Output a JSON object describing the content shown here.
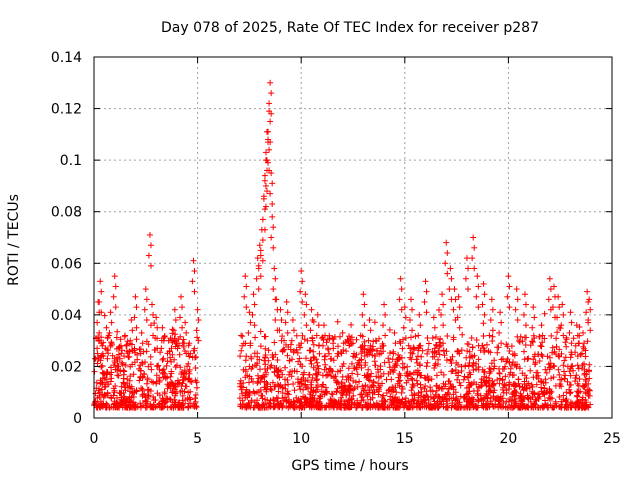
{
  "chart_data": {
    "type": "scatter",
    "title": "Day 078 of 2025, Rate Of TEC Index for receiver p287",
    "xlabel": "GPS time / hours",
    "ylabel": "ROTI / TECUs",
    "xlim": [
      0,
      25
    ],
    "ylim": [
      0,
      0.14
    ],
    "x_ticks": [
      0,
      5,
      10,
      15,
      20,
      25
    ],
    "x_tick_labels": [
      "0",
      "5",
      "10",
      "15",
      "20",
      "25"
    ],
    "y_ticks": [
      0,
      0.02,
      0.04,
      0.06,
      0.08,
      0.1,
      0.12,
      0.14
    ],
    "y_tick_labels": [
      "0",
      "0.02",
      "0.04",
      "0.06",
      "0.08",
      "0.1",
      "0.12",
      "0.14"
    ],
    "grid": true,
    "marker": "+",
    "color": "#ff0000",
    "data_gap_hours": [
      5.0,
      7.0
    ],
    "series": [
      {
        "name": "ROTI",
        "x": [
          0.1,
          0.2,
          0.3,
          0.4,
          0.6,
          0.8,
          1.0,
          1.2,
          1.5,
          1.8,
          2.0,
          2.3,
          2.5,
          2.7,
          2.8,
          3.0,
          3.3,
          3.6,
          3.9,
          4.2,
          4.4,
          4.6,
          4.8,
          5.0,
          7.1,
          7.3,
          7.5,
          7.7,
          7.9,
          8.0,
          8.1,
          8.2,
          8.25,
          8.3,
          8.35,
          8.4,
          8.45,
          8.5,
          8.55,
          8.6,
          8.7,
          8.8,
          9.0,
          9.3,
          9.6,
          10.0,
          10.2,
          10.5,
          10.8,
          11.1,
          11.5,
          12.0,
          12.5,
          13.0,
          13.3,
          13.6,
          14.0,
          14.5,
          14.8,
          15.0,
          15.3,
          15.7,
          16.0,
          16.4,
          16.8,
          17.0,
          17.2,
          17.4,
          17.6,
          18.0,
          18.3,
          18.5,
          18.8,
          19.2,
          19.6,
          20.0,
          20.4,
          20.8,
          21.2,
          21.6,
          22.0,
          22.2,
          22.4,
          22.6,
          23.0,
          23.3,
          23.6,
          23.8,
          23.9
        ],
        "y": [
          0.031,
          0.045,
          0.053,
          0.028,
          0.035,
          0.041,
          0.055,
          0.027,
          0.032,
          0.038,
          0.047,
          0.033,
          0.05,
          0.071,
          0.044,
          0.039,
          0.035,
          0.03,
          0.042,
          0.047,
          0.037,
          0.029,
          0.061,
          0.042,
          0.032,
          0.055,
          0.041,
          0.048,
          0.062,
          0.067,
          0.073,
          0.085,
          0.094,
          0.1,
          0.111,
          0.108,
          0.119,
          0.13,
          0.095,
          0.078,
          0.058,
          0.046,
          0.042,
          0.045,
          0.038,
          0.057,
          0.048,
          0.042,
          0.04,
          0.036,
          0.031,
          0.033,
          0.029,
          0.048,
          0.038,
          0.03,
          0.044,
          0.033,
          0.054,
          0.043,
          0.046,
          0.04,
          0.053,
          0.039,
          0.048,
          0.068,
          0.058,
          0.05,
          0.047,
          0.062,
          0.07,
          0.055,
          0.052,
          0.046,
          0.041,
          0.055,
          0.05,
          0.048,
          0.043,
          0.036,
          0.054,
          0.051,
          0.047,
          0.044,
          0.041,
          0.036,
          0.033,
          0.049,
          0.046
        ]
      }
    ]
  }
}
